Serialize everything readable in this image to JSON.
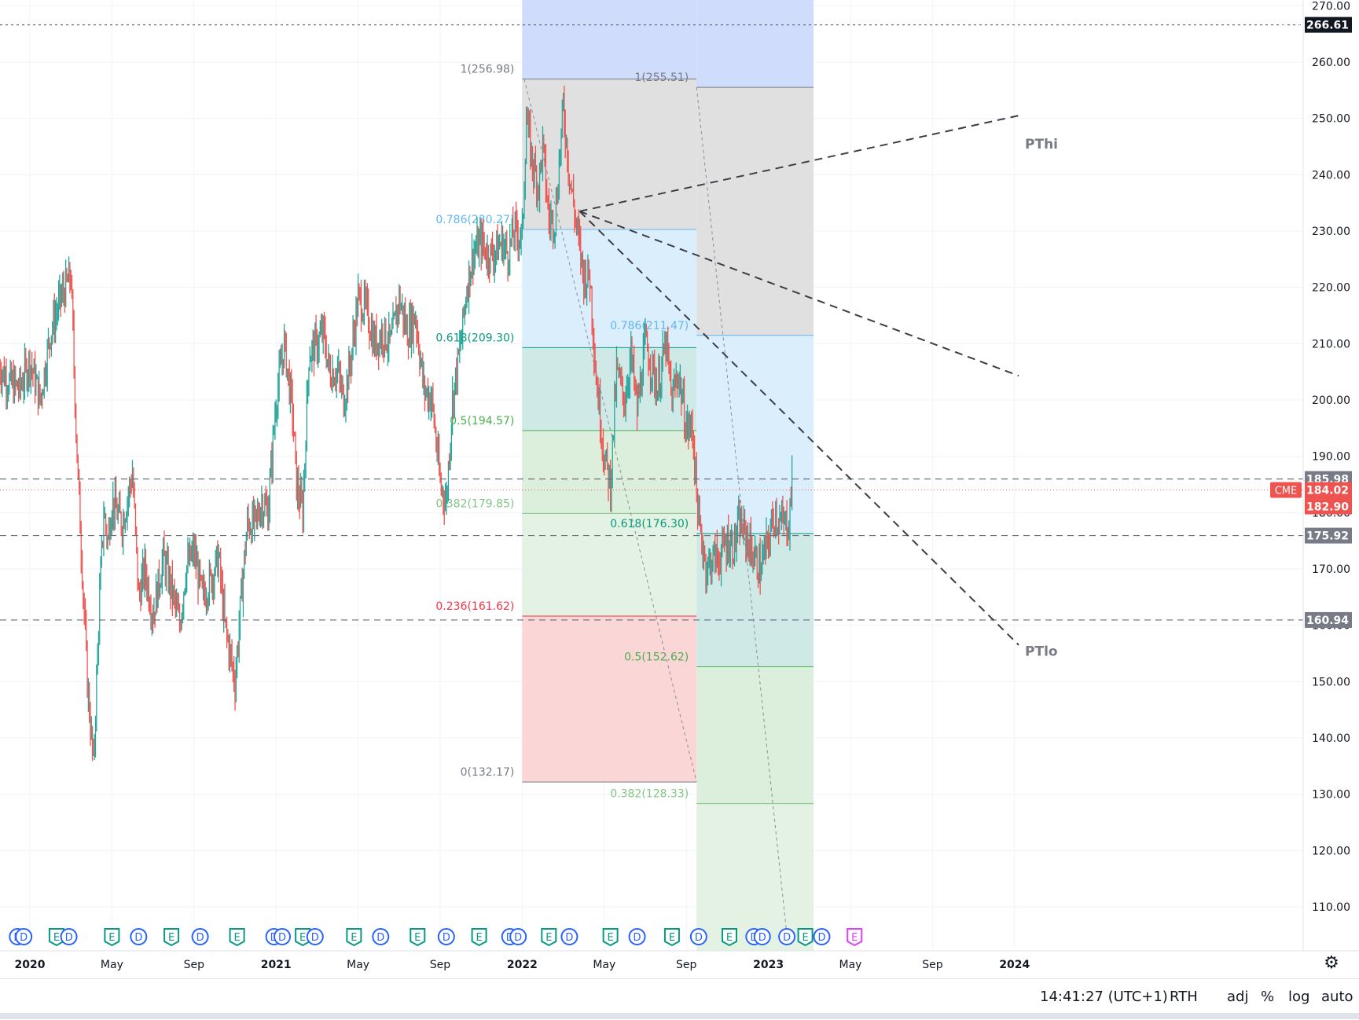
{
  "chart_data": {
    "type": "line",
    "title": "",
    "symbol": "CME",
    "ylim": [
      103,
      270
    ],
    "y_ticks": [
      "110.00",
      "120.00",
      "130.00",
      "140.00",
      "150.00",
      "160.00",
      "170.00",
      "180.00",
      "190.00",
      "200.00",
      "210.00",
      "220.00",
      "230.00",
      "240.00",
      "250.00",
      "260.00",
      "270.00"
    ],
    "x_ticks": [
      {
        "label": "2020",
        "t": 0,
        "bold": true
      },
      {
        "label": "May",
        "t": 4,
        "bold": false
      },
      {
        "label": "Sep",
        "t": 8,
        "bold": false
      },
      {
        "label": "2021",
        "t": 12,
        "bold": true
      },
      {
        "label": "May",
        "t": 16,
        "bold": false
      },
      {
        "label": "Sep",
        "t": 20,
        "bold": false
      },
      {
        "label": "2022",
        "t": 24,
        "bold": true
      },
      {
        "label": "May",
        "t": 28,
        "bold": false
      },
      {
        "label": "Sep",
        "t": 32,
        "bold": false
      },
      {
        "label": "2023",
        "t": 36,
        "bold": true
      },
      {
        "label": "May",
        "t": 40,
        "bold": false
      },
      {
        "label": "Sep",
        "t": 44,
        "bold": false
      },
      {
        "label": "2024",
        "t": 48,
        "bold": true
      }
    ],
    "price_series": {
      "name": "CME",
      "t": [
        -1.5,
        -1,
        -0.5,
        0,
        0.5,
        1,
        1.5,
        2,
        2.3,
        2.8,
        3.1,
        3.4,
        3.6,
        3.8,
        4,
        4.5,
        5,
        5.3,
        5.6,
        6,
        6.5,
        7,
        7.3,
        7.6,
        8,
        8.4,
        8.8,
        9.2,
        9.5,
        10,
        10.3,
        10.6,
        11,
        11.3,
        11.6,
        12,
        12.4,
        12.8,
        13,
        13.3,
        13.6,
        14,
        14.3,
        14.6,
        15,
        15.3,
        15.6,
        16,
        16.4,
        16.8,
        17.2,
        17.6,
        18,
        18.4,
        18.8,
        19.2,
        19.6,
        20,
        20.3,
        20.6,
        21,
        21.3,
        21.6,
        22,
        22.3,
        22.6,
        23,
        23.3,
        23.6,
        24,
        24.2,
        24.5,
        24.8,
        25,
        25.3,
        25.6,
        26,
        26.3,
        26.6,
        27,
        27.3,
        27.6,
        28,
        28.3,
        28.6,
        29,
        29.3,
        29.6,
        30,
        30.3,
        30.6,
        31,
        31.3,
        31.6,
        32,
        32.3,
        32.6,
        33,
        33.3,
        33.6,
        34,
        34.3,
        34.6,
        35,
        35.3,
        35.6,
        36,
        36.3,
        36.6,
        37,
        37.2
      ],
      "values": [
        206,
        203,
        202,
        207,
        200,
        212,
        218,
        222,
        190,
        150,
        135,
        165,
        180,
        175,
        182,
        178,
        187,
        165,
        170,
        162,
        172,
        165,
        160,
        170,
        173,
        165,
        168,
        172,
        160,
        150,
        165,
        178,
        178,
        182,
        180,
        200,
        210,
        198,
        185,
        180,
        208,
        210,
        212,
        205,
        205,
        200,
        206,
        218,
        216,
        210,
        212,
        210,
        218,
        212,
        215,
        202,
        200,
        185,
        182,
        200,
        210,
        220,
        226,
        228,
        226,
        226,
        228,
        226,
        230,
        229,
        250,
        242,
        238,
        245,
        232,
        232,
        252,
        240,
        232,
        222,
        222,
        204,
        190,
        185,
        205,
        200,
        208,
        198,
        210,
        206,
        202,
        210,
        200,
        205,
        195,
        195,
        178,
        170,
        172,
        172,
        175,
        174,
        178,
        175,
        172,
        170,
        175,
        180,
        178,
        178,
        189
      ],
      "up_color": "#26a69a",
      "down_color": "#ef5350"
    },
    "horizontal_lines": [
      {
        "value": 266.61,
        "label": "266.61",
        "label_bg": "#131722"
      },
      {
        "value": 185.98,
        "label": "185.98",
        "label_bg": "#787b86"
      },
      {
        "value": 175.92,
        "label": "175.92",
        "label_bg": "#787b86"
      },
      {
        "value": 160.94,
        "label": "160.94",
        "label_bg": "#787b86"
      }
    ],
    "last_price": {
      "symbol": "CME",
      "value": "184.02",
      "previous_close": "182.90",
      "line_value": 184.02,
      "color": "#ef5350"
    },
    "fib_retracement_1": {
      "t_start": 24,
      "t_end": 32.5,
      "levels": [
        {
          "ratio": "1",
          "price": 256.98,
          "label": "1(256.98)",
          "color": "#787b86",
          "fill": "#e0e0e0"
        },
        {
          "ratio": "0.786",
          "price": 230.27,
          "label": "0.786(230.27)",
          "color": "#64b5f6",
          "fill": "#dbeefc"
        },
        {
          "ratio": "0.618",
          "price": 209.3,
          "label": "0.618(209.30)",
          "color": "#089981",
          "fill": "#cfe9e6"
        },
        {
          "ratio": "0.5",
          "price": 194.57,
          "label": "0.5(194.57)",
          "color": "#4caf50",
          "fill": "#dcefdc"
        },
        {
          "ratio": "0.382",
          "price": 179.85,
          "label": "0.382(179.85)",
          "color": "#81c784",
          "fill": "#e4f2e4"
        },
        {
          "ratio": "0.236",
          "price": 161.62,
          "label": "0.236(161.62)",
          "color": "#f23645",
          "fill": "#fbd6d6"
        },
        {
          "ratio": "0",
          "price": 132.17,
          "label": "0(132.17)",
          "color": "#787b86",
          "fill": ""
        }
      ],
      "top_fill": "#cfdcfb"
    },
    "fib_retracement_2": {
      "t_start": 32.5,
      "t_end": 38.2,
      "levels": [
        {
          "ratio": "1",
          "price": 255.51,
          "label": "1(255.51)",
          "color": "#787b86",
          "fill": "#e0e0e0"
        },
        {
          "ratio": "0.786",
          "price": 211.47,
          "label": "0.786(211.47)",
          "color": "#64b5f6",
          "fill": "#dbeefc"
        },
        {
          "ratio": "0.618",
          "price": 176.3,
          "label": "0.618(176.30)",
          "color": "#089981",
          "fill": "#cfe9e6"
        },
        {
          "ratio": "0.5",
          "price": 152.62,
          "label": "0.5(152.62)",
          "color": "#4caf50",
          "fill": "#dcefdc"
        },
        {
          "ratio": "0.382",
          "price": 128.33,
          "label": "0.382(128.33)",
          "color": "#81c784",
          "fill": "#e4f2e4"
        }
      ]
    },
    "trendlines": [
      {
        "name": "PThi",
        "t1": 26.8,
        "v1": 233.5,
        "t2": 48.2,
        "v2": 250.5,
        "label": "PThi"
      },
      {
        "name": "mid",
        "t1": 26.8,
        "v1": 233.5,
        "t2": 48.2,
        "v2": 204.3
      },
      {
        "name": "PTlo",
        "t1": 26.8,
        "v1": 233.5,
        "t2": 48.2,
        "v2": 156.5,
        "label": "PTlo"
      },
      {
        "name": "diag1",
        "t1": 24.1,
        "v1": 256.98,
        "t2": 32.5,
        "v2": 132.17,
        "thin": true
      },
      {
        "name": "diag2",
        "t1": 32.5,
        "v1": 255.51,
        "t2": 36.9,
        "v2": 105,
        "thin": true
      }
    ],
    "events": [
      {
        "t": -0.6,
        "type": "D"
      },
      {
        "t": -0.3,
        "type": "D"
      },
      {
        "t": 1.3,
        "type": "E"
      },
      {
        "t": 1.9,
        "type": "D"
      },
      {
        "t": 4.0,
        "type": "E"
      },
      {
        "t": 5.3,
        "type": "D"
      },
      {
        "t": 6.9,
        "type": "E"
      },
      {
        "t": 8.3,
        "type": "D"
      },
      {
        "t": 10.1,
        "type": "E"
      },
      {
        "t": 11.9,
        "type": "D"
      },
      {
        "t": 12.3,
        "type": "D"
      },
      {
        "t": 13.3,
        "type": "E"
      },
      {
        "t": 13.9,
        "type": "D"
      },
      {
        "t": 15.8,
        "type": "E"
      },
      {
        "t": 17.1,
        "type": "D"
      },
      {
        "t": 18.9,
        "type": "E"
      },
      {
        "t": 20.3,
        "type": "D"
      },
      {
        "t": 21.9,
        "type": "E"
      },
      {
        "t": 23.4,
        "type": "D"
      },
      {
        "t": 23.8,
        "type": "D"
      },
      {
        "t": 25.3,
        "type": "E"
      },
      {
        "t": 26.3,
        "type": "D"
      },
      {
        "t": 28.3,
        "type": "E"
      },
      {
        "t": 29.6,
        "type": "D"
      },
      {
        "t": 31.3,
        "type": "E"
      },
      {
        "t": 32.6,
        "type": "D"
      },
      {
        "t": 34.1,
        "type": "E"
      },
      {
        "t": 35.3,
        "type": "D"
      },
      {
        "t": 35.7,
        "type": "D"
      },
      {
        "t": 36.9,
        "type": "D"
      },
      {
        "t": 37.8,
        "type": "E"
      },
      {
        "t": 38.6,
        "type": "D"
      },
      {
        "t": 40.2,
        "type": "E",
        "future": true
      }
    ],
    "grid": true
  },
  "bottom_bar": {
    "time": "14:41:27 (UTC+1)",
    "session": "RTH",
    "adj": "adj",
    "percent": "%",
    "log": "log",
    "auto": "auto"
  },
  "icons": {
    "settings": "gear-icon",
    "add": "plus-circle-icon"
  }
}
